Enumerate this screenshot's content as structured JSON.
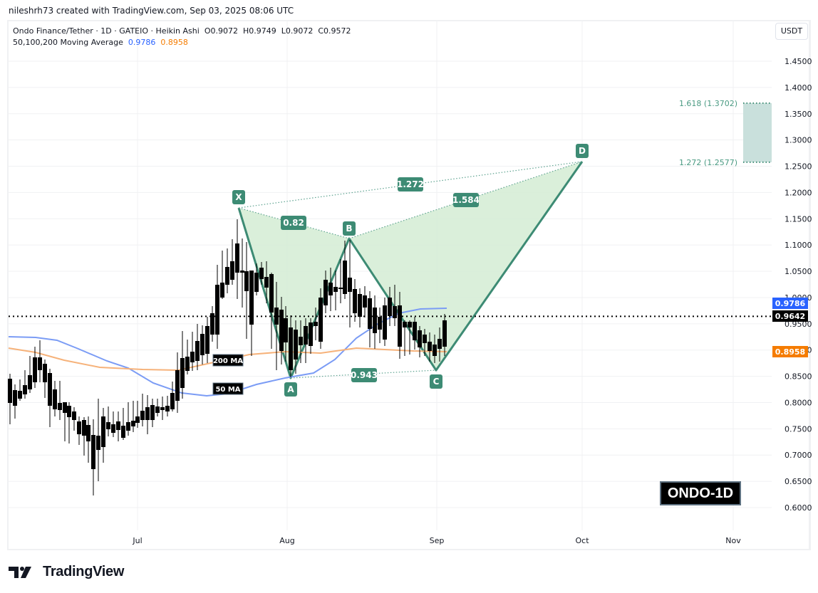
{
  "credit": "nileshrh73 created with TradingView.com, Sep 03, 2025 08:06 UTC",
  "legend": {
    "symbol_line": "Ondo Finance/Tether · 1D · GATEIO · Heikin Ashi",
    "ohlc": {
      "open": "O0.9072",
      "high": "H0.9749",
      "low": "L0.9072",
      "close": "C0.9572"
    },
    "ma_label": "50,100,200 Moving Average",
    "ma_value_blue": "0.9786",
    "ma_value_orange": "0.8958"
  },
  "currency_button": "USDT",
  "ticker_badge": "ONDO-1D",
  "brand": "TradingView",
  "colors": {
    "pattern_stroke": "#3d8b74",
    "pattern_fill": "#d4ecd4",
    "ma50": "#7b9cf5",
    "ma200": "#f6b27a",
    "target_zone": "#c9e0dc",
    "price_label_blue": "#2962ff",
    "price_label_black": "#000000",
    "price_label_orange": "#f57c00"
  },
  "chart_data": {
    "type": "candlestick",
    "title": "Ondo Finance/Tether · 1D · GATEIO · Heikin Ashi",
    "xlabel": "",
    "ylabel": "USDT",
    "ylim": [
      0.57,
      1.48
    ],
    "x_ticks": [
      "Jul",
      "Aug",
      "Sep",
      "Oct",
      "Nov"
    ],
    "y_ticks": [
      "1.4500",
      "1.4000",
      "1.3500",
      "1.3000",
      "1.2500",
      "1.2000",
      "1.1500",
      "1.1000",
      "1.0500",
      "1.0000",
      "0.9500",
      "0.9000",
      "0.8500",
      "0.8000",
      "0.7500",
      "0.7000",
      "0.6500",
      "0.6000"
    ],
    "price_labels": [
      {
        "name": "MA 50",
        "value": "0.9786",
        "color": "#2962ff"
      },
      {
        "name": "Last price",
        "value": "0.9642",
        "color": "#000000"
      },
      {
        "name": "MA 200",
        "value": "0.8958",
        "color": "#f57c00"
      }
    ],
    "harmonic_pattern": {
      "points": [
        {
          "label": "X",
          "date": "Jul 21",
          "price": 1.17
        },
        {
          "label": "A",
          "date": "Aug 2",
          "price": 0.845
        },
        {
          "label": "B",
          "date": "Aug 6",
          "price": 1.11
        },
        {
          "label": "C",
          "date": "Aug 31",
          "price": 0.858
        },
        {
          "label": "D",
          "date": "Oct 1",
          "price": 1.2577
        }
      ],
      "ratios": [
        {
          "label": "0.82",
          "between": "XA-AB"
        },
        {
          "label": "0.943",
          "between": "AC"
        },
        {
          "label": "1.272",
          "between": "XD"
        },
        {
          "label": "1.584",
          "between": "BD"
        }
      ]
    },
    "target_zone": {
      "lower": {
        "label": "1.272 (1.2577)",
        "value": 1.2577
      },
      "upper": {
        "label": "1.618 (1.3702)",
        "value": 1.3702
      }
    },
    "moving_averages": [
      {
        "name": "50 MA",
        "current": 0.9786,
        "color": "#7b9cf5"
      },
      {
        "name": "200 MA",
        "current": 0.8958,
        "color": "#f6b27a"
      }
    ],
    "last_price": 0.9642
  }
}
